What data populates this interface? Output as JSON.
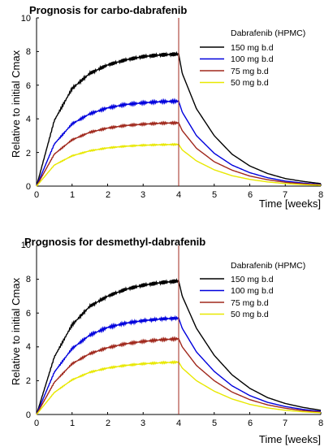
{
  "chart_data": [
    {
      "type": "line",
      "title": "Prognosis for carbo-dabrafenib",
      "xlabel": "Time [weeks]",
      "ylabel": "Relative to initial Cmax",
      "xlim": [
        0,
        8
      ],
      "ylim": [
        0,
        10
      ],
      "xticks": [
        "0",
        "1",
        "2",
        "3",
        "4",
        "5",
        "6",
        "7",
        "8"
      ],
      "yticks": [
        "0",
        "2",
        "4",
        "6",
        "8",
        "10"
      ],
      "vline_x": 4,
      "legend_title": "Dabrafenib (HPMC)",
      "legend_position": "top-right",
      "grid": false,
      "series": [
        {
          "name": "150 mg b.d",
          "color": "#000000",
          "values": [
            {
              "x": 0,
              "y": 0
            },
            {
              "x": 0.5,
              "y": 3.9
            },
            {
              "x": 1,
              "y": 5.8
            },
            {
              "x": 1.5,
              "y": 6.7
            },
            {
              "x": 2,
              "y": 7.2
            },
            {
              "x": 2.5,
              "y": 7.5
            },
            {
              "x": 3,
              "y": 7.7
            },
            {
              "x": 3.5,
              "y": 7.8
            },
            {
              "x": 4,
              "y": 7.85
            },
            {
              "x": 4.1,
              "y": 6.7
            },
            {
              "x": 4.5,
              "y": 4.6
            },
            {
              "x": 5,
              "y": 3.0
            },
            {
              "x": 5.5,
              "y": 1.9
            },
            {
              "x": 6,
              "y": 1.2
            },
            {
              "x": 6.5,
              "y": 0.75
            },
            {
              "x": 7,
              "y": 0.45
            },
            {
              "x": 7.5,
              "y": 0.28
            },
            {
              "x": 8,
              "y": 0.15
            }
          ]
        },
        {
          "name": "100 mg b.d",
          "color": "#0000dd",
          "values": [
            {
              "x": 0,
              "y": 0
            },
            {
              "x": 0.5,
              "y": 2.5
            },
            {
              "x": 1,
              "y": 3.7
            },
            {
              "x": 1.5,
              "y": 4.3
            },
            {
              "x": 2,
              "y": 4.65
            },
            {
              "x": 2.5,
              "y": 4.85
            },
            {
              "x": 3,
              "y": 4.95
            },
            {
              "x": 3.5,
              "y": 5.02
            },
            {
              "x": 4,
              "y": 5.05
            },
            {
              "x": 4.1,
              "y": 4.4
            },
            {
              "x": 4.5,
              "y": 3.0
            },
            {
              "x": 5,
              "y": 1.95
            },
            {
              "x": 5.5,
              "y": 1.25
            },
            {
              "x": 6,
              "y": 0.8
            },
            {
              "x": 6.5,
              "y": 0.5
            },
            {
              "x": 7,
              "y": 0.3
            },
            {
              "x": 7.5,
              "y": 0.18
            },
            {
              "x": 8,
              "y": 0.1
            }
          ]
        },
        {
          "name": "75 mg b.d",
          "color": "#a0281c",
          "values": [
            {
              "x": 0,
              "y": 0
            },
            {
              "x": 0.5,
              "y": 1.9
            },
            {
              "x": 1,
              "y": 2.75
            },
            {
              "x": 1.5,
              "y": 3.2
            },
            {
              "x": 2,
              "y": 3.45
            },
            {
              "x": 2.5,
              "y": 3.6
            },
            {
              "x": 3,
              "y": 3.68
            },
            {
              "x": 3.5,
              "y": 3.74
            },
            {
              "x": 4,
              "y": 3.76
            },
            {
              "x": 4.1,
              "y": 3.3
            },
            {
              "x": 4.5,
              "y": 2.25
            },
            {
              "x": 5,
              "y": 1.45
            },
            {
              "x": 5.5,
              "y": 0.95
            },
            {
              "x": 6,
              "y": 0.6
            },
            {
              "x": 6.5,
              "y": 0.38
            },
            {
              "x": 7,
              "y": 0.23
            },
            {
              "x": 7.5,
              "y": 0.14
            },
            {
              "x": 8,
              "y": 0.08
            }
          ]
        },
        {
          "name": "50 mg b.d",
          "color": "#e8e800",
          "values": [
            {
              "x": 0,
              "y": 0
            },
            {
              "x": 0.5,
              "y": 1.25
            },
            {
              "x": 1,
              "y": 1.8
            },
            {
              "x": 1.5,
              "y": 2.1
            },
            {
              "x": 2,
              "y": 2.27
            },
            {
              "x": 2.5,
              "y": 2.37
            },
            {
              "x": 3,
              "y": 2.43
            },
            {
              "x": 3.5,
              "y": 2.46
            },
            {
              "x": 4,
              "y": 2.48
            },
            {
              "x": 4.1,
              "y": 2.15
            },
            {
              "x": 4.5,
              "y": 1.5
            },
            {
              "x": 5,
              "y": 0.97
            },
            {
              "x": 5.5,
              "y": 0.62
            },
            {
              "x": 6,
              "y": 0.4
            },
            {
              "x": 6.5,
              "y": 0.25
            },
            {
              "x": 7,
              "y": 0.15
            },
            {
              "x": 7.5,
              "y": 0.09
            },
            {
              "x": 8,
              "y": 0.05
            }
          ]
        }
      ]
    },
    {
      "type": "line",
      "title": "Prognosis for desmethyl-dabrafenib",
      "xlabel": "Time [weeks]",
      "ylabel": "Relative to initial Cmax",
      "xlim": [
        0,
        8
      ],
      "ylim": [
        0,
        10
      ],
      "xticks": [
        "0",
        "1",
        "2",
        "3",
        "4",
        "5",
        "6",
        "7",
        "8"
      ],
      "yticks": [
        "0",
        "2",
        "4",
        "6",
        "8",
        "10"
      ],
      "vline_x": 4,
      "legend_title": "Dabrafenib (HPMC)",
      "legend_position": "top-right",
      "grid": false,
      "series": [
        {
          "name": "150 mg b.d",
          "color": "#000000",
          "values": [
            {
              "x": 0,
              "y": 0
            },
            {
              "x": 0.5,
              "y": 3.4
            },
            {
              "x": 1,
              "y": 5.3
            },
            {
              "x": 1.5,
              "y": 6.4
            },
            {
              "x": 2,
              "y": 7.0
            },
            {
              "x": 2.5,
              "y": 7.4
            },
            {
              "x": 3,
              "y": 7.65
            },
            {
              "x": 3.5,
              "y": 7.8
            },
            {
              "x": 4,
              "y": 7.9
            },
            {
              "x": 4.1,
              "y": 7.0
            },
            {
              "x": 4.5,
              "y": 5.1
            },
            {
              "x": 5,
              "y": 3.5
            },
            {
              "x": 5.5,
              "y": 2.35
            },
            {
              "x": 6,
              "y": 1.55
            },
            {
              "x": 6.5,
              "y": 1.0
            },
            {
              "x": 7,
              "y": 0.65
            },
            {
              "x": 7.5,
              "y": 0.42
            },
            {
              "x": 8,
              "y": 0.25
            }
          ]
        },
        {
          "name": "100 mg b.d",
          "color": "#0000dd",
          "values": [
            {
              "x": 0,
              "y": 0
            },
            {
              "x": 0.5,
              "y": 2.5
            },
            {
              "x": 1,
              "y": 3.9
            },
            {
              "x": 1.5,
              "y": 4.7
            },
            {
              "x": 2,
              "y": 5.15
            },
            {
              "x": 2.5,
              "y": 5.4
            },
            {
              "x": 3,
              "y": 5.55
            },
            {
              "x": 3.5,
              "y": 5.65
            },
            {
              "x": 4,
              "y": 5.7
            },
            {
              "x": 4.1,
              "y": 5.1
            },
            {
              "x": 4.5,
              "y": 3.7
            },
            {
              "x": 5,
              "y": 2.55
            },
            {
              "x": 5.5,
              "y": 1.7
            },
            {
              "x": 6,
              "y": 1.12
            },
            {
              "x": 6.5,
              "y": 0.72
            },
            {
              "x": 7,
              "y": 0.47
            },
            {
              "x": 7.5,
              "y": 0.3
            },
            {
              "x": 8,
              "y": 0.18
            }
          ]
        },
        {
          "name": "75 mg b.d",
          "color": "#a0281c",
          "values": [
            {
              "x": 0,
              "y": 0
            },
            {
              "x": 0.5,
              "y": 1.9
            },
            {
              "x": 1,
              "y": 3.0
            },
            {
              "x": 1.5,
              "y": 3.6
            },
            {
              "x": 2,
              "y": 3.95
            },
            {
              "x": 2.5,
              "y": 4.18
            },
            {
              "x": 3,
              "y": 4.32
            },
            {
              "x": 3.5,
              "y": 4.42
            },
            {
              "x": 4,
              "y": 4.48
            },
            {
              "x": 4.1,
              "y": 4.0
            },
            {
              "x": 4.5,
              "y": 2.9
            },
            {
              "x": 5,
              "y": 2.0
            },
            {
              "x": 5.5,
              "y": 1.33
            },
            {
              "x": 6,
              "y": 0.88
            },
            {
              "x": 6.5,
              "y": 0.57
            },
            {
              "x": 7,
              "y": 0.37
            },
            {
              "x": 7.5,
              "y": 0.23
            },
            {
              "x": 8,
              "y": 0.14
            }
          ]
        },
        {
          "name": "50 mg b.d",
          "color": "#e8e800",
          "values": [
            {
              "x": 0,
              "y": 0
            },
            {
              "x": 0.5,
              "y": 1.3
            },
            {
              "x": 1,
              "y": 2.05
            },
            {
              "x": 1.5,
              "y": 2.5
            },
            {
              "x": 2,
              "y": 2.75
            },
            {
              "x": 2.5,
              "y": 2.9
            },
            {
              "x": 3,
              "y": 3.0
            },
            {
              "x": 3.5,
              "y": 3.06
            },
            {
              "x": 4,
              "y": 3.1
            },
            {
              "x": 4.1,
              "y": 2.75
            },
            {
              "x": 4.5,
              "y": 2.0
            },
            {
              "x": 5,
              "y": 1.38
            },
            {
              "x": 5.5,
              "y": 0.92
            },
            {
              "x": 6,
              "y": 0.6
            },
            {
              "x": 6.5,
              "y": 0.39
            },
            {
              "x": 7,
              "y": 0.25
            },
            {
              "x": 7.5,
              "y": 0.16
            },
            {
              "x": 8,
              "y": 0.1
            }
          ]
        }
      ]
    }
  ]
}
